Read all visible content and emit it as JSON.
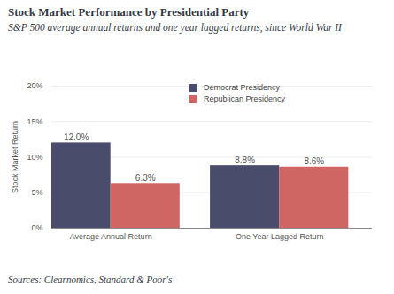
{
  "chart_data": {
    "type": "bar",
    "title": "Stock Market Performance by Presidential Party",
    "subtitle": "S&P 500 average annual returns and one year lagged returns, since World War II",
    "caption": "Sources: Clearnomics, Standard & Poor's",
    "ylabel": "Stock Market Return",
    "categories": [
      "Average Annual Return",
      "One Year Lagged Return"
    ],
    "series": [
      {
        "name": "Democrat Presidency",
        "color": "#4a4c6b",
        "values": [
          12.0,
          8.8
        ],
        "value_labels": [
          "12.0%",
          "8.8%"
        ]
      },
      {
        "name": "Republican Presidency",
        "color": "#cf6663",
        "values": [
          6.3,
          8.6
        ],
        "value_labels": [
          "6.3%",
          "8.6%"
        ]
      }
    ],
    "ylim": [
      0,
      20
    ],
    "yticks": [
      {
        "value": 0,
        "label": "0%"
      },
      {
        "value": 5,
        "label": "5%"
      },
      {
        "value": 10,
        "label": "10%"
      },
      {
        "value": 15,
        "label": "15%"
      },
      {
        "value": 20,
        "label": "20%"
      }
    ],
    "grid": true,
    "legend": "top",
    "data_labels": true
  }
}
